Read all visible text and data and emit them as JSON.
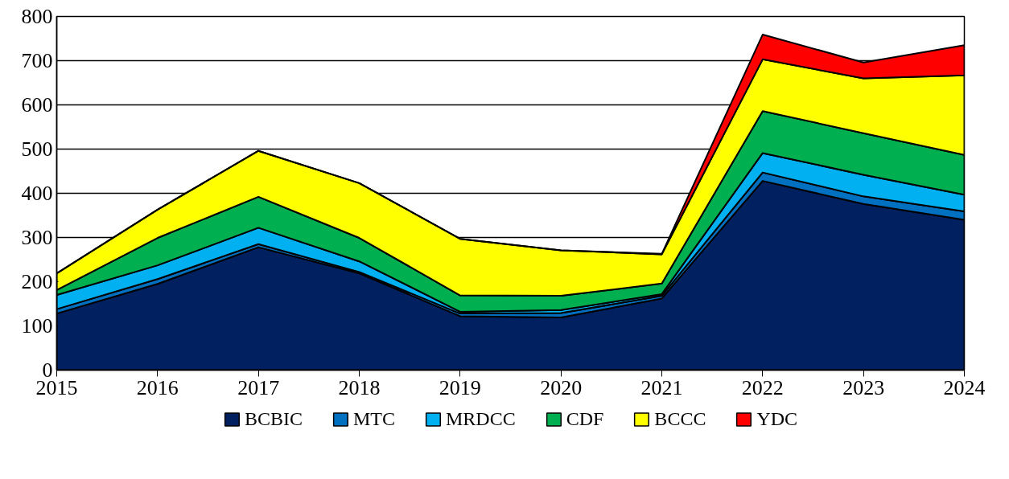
{
  "chart_data": {
    "type": "area",
    "stacked": true,
    "x": [
      2015,
      2016,
      2017,
      2018,
      2019,
      2020,
      2021,
      2022,
      2023,
      2024
    ],
    "xlim": [
      2015,
      2024
    ],
    "xticks": [
      2015,
      2016,
      2017,
      2018,
      2019,
      2020,
      2021,
      2022,
      2023,
      2024
    ],
    "ylim": [
      0,
      800
    ],
    "yticks": [
      0,
      100,
      200,
      300,
      400,
      500,
      600,
      700,
      800
    ],
    "grid": "y",
    "legend": "bottom",
    "series": [
      {
        "name": "BCBIC",
        "color": "#002060",
        "values": [
          128,
          195,
          278,
          219,
          122,
          119,
          162,
          428,
          376,
          340
        ]
      },
      {
        "name": "MTC",
        "color": "#0070c0",
        "values": [
          10,
          11,
          7,
          3,
          6,
          10,
          6,
          19,
          17,
          19
        ]
      },
      {
        "name": "MRDCC",
        "color": "#00b0f0",
        "values": [
          32,
          31,
          37,
          24,
          4,
          7,
          4,
          44,
          49,
          38
        ]
      },
      {
        "name": "CDF",
        "color": "#00b050",
        "values": [
          11,
          62,
          70,
          53,
          37,
          32,
          24,
          95,
          94,
          90
        ]
      },
      {
        "name": "BCCC",
        "color": "#ffff00",
        "values": [
          38,
          64,
          104,
          124,
          128,
          103,
          66,
          117,
          124,
          180
        ]
      },
      {
        "name": "YDC",
        "color": "#ff0000",
        "values": [
          0,
          0,
          0,
          0,
          0,
          0,
          1,
          56,
          36,
          68
        ]
      }
    ]
  }
}
